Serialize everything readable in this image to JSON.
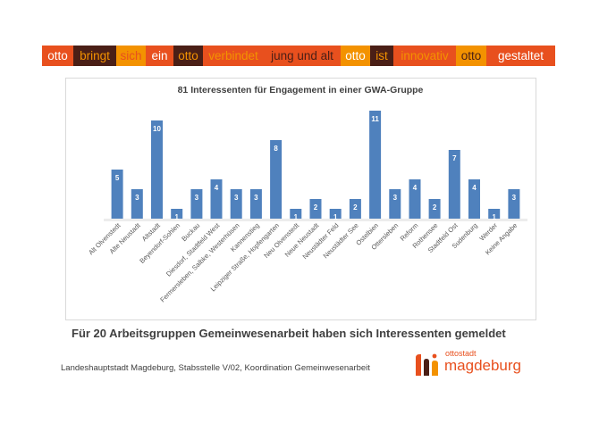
{
  "banner": [
    {
      "text": "otto",
      "bg": "#e8501e",
      "fg": "#ffffff"
    },
    {
      "text": "bringt",
      "bg": "#4a1f16",
      "fg": "#f39200"
    },
    {
      "text": "sich",
      "bg": "#f39200",
      "fg": "#e8501e"
    },
    {
      "text": "ein",
      "bg": "#e8501e",
      "fg": "#ffffff"
    },
    {
      "text": "otto",
      "bg": "#4a1f16",
      "fg": "#f39200"
    },
    {
      "text": "verbindet",
      "bg": "#e8501e",
      "fg": "#f39200"
    },
    {
      "text": "jung und alt",
      "bg": "#e8501e",
      "fg": "#4a1f16"
    },
    {
      "text": "otto",
      "bg": "#f39200",
      "fg": "#ffffff"
    },
    {
      "text": "ist",
      "bg": "#4a1f16",
      "fg": "#f39200"
    },
    {
      "text": "innovativ",
      "bg": "#e8501e",
      "fg": "#f39200"
    },
    {
      "text": "otto",
      "bg": "#f39200",
      "fg": "#4a1f16"
    },
    {
      "text": "gestaltet",
      "bg": "#e8501e",
      "fg": "#ffffff"
    }
  ],
  "chart_data": {
    "type": "bar",
    "title": "81 Interessenten für Engagement in einer GWA-Gruppe",
    "xlabel": "",
    "ylabel": "",
    "ylim": [
      0,
      11
    ],
    "grid": false,
    "legend": "none",
    "bar_color": "#4f81bd",
    "categories": [
      "Alt Olvenstedt",
      "Alte Neustadt",
      "Altstadt",
      "Beyendorf-Sohlen",
      "Buckau",
      "Diesdorf, Stadtfeld West",
      "Fermersleben, Salbke, Westerhüsen",
      "Kannenstieg",
      "Leipziger Straße, Hopfengarten",
      "Neu Olvenstedt",
      "Neue Neustadt",
      "Neustädter Feld",
      "Neustädter See",
      "Ostelbien",
      "Ottersleben",
      "Reform",
      "Rothensee",
      "Stadtfeld Ost",
      "Sudenburg",
      "Werder",
      "Keine Angabe"
    ],
    "values": [
      5,
      3,
      10,
      1,
      3,
      4,
      3,
      3,
      8,
      1,
      2,
      1,
      2,
      11,
      3,
      4,
      2,
      7,
      4,
      1,
      3
    ]
  },
  "subtitle": "Für 20 Arbeitsgruppen Gemeinwesenarbeit haben sich Interessenten gemeldet",
  "footer": "Landeshauptstadt Magdeburg, Stabsstelle V/02, Koordination Gemeinwesenarbeit",
  "logo": {
    "small": "ottostadt",
    "big": "magdeburg",
    "icon": "ottostadt-logo-icon",
    "color": "#e8501e"
  }
}
